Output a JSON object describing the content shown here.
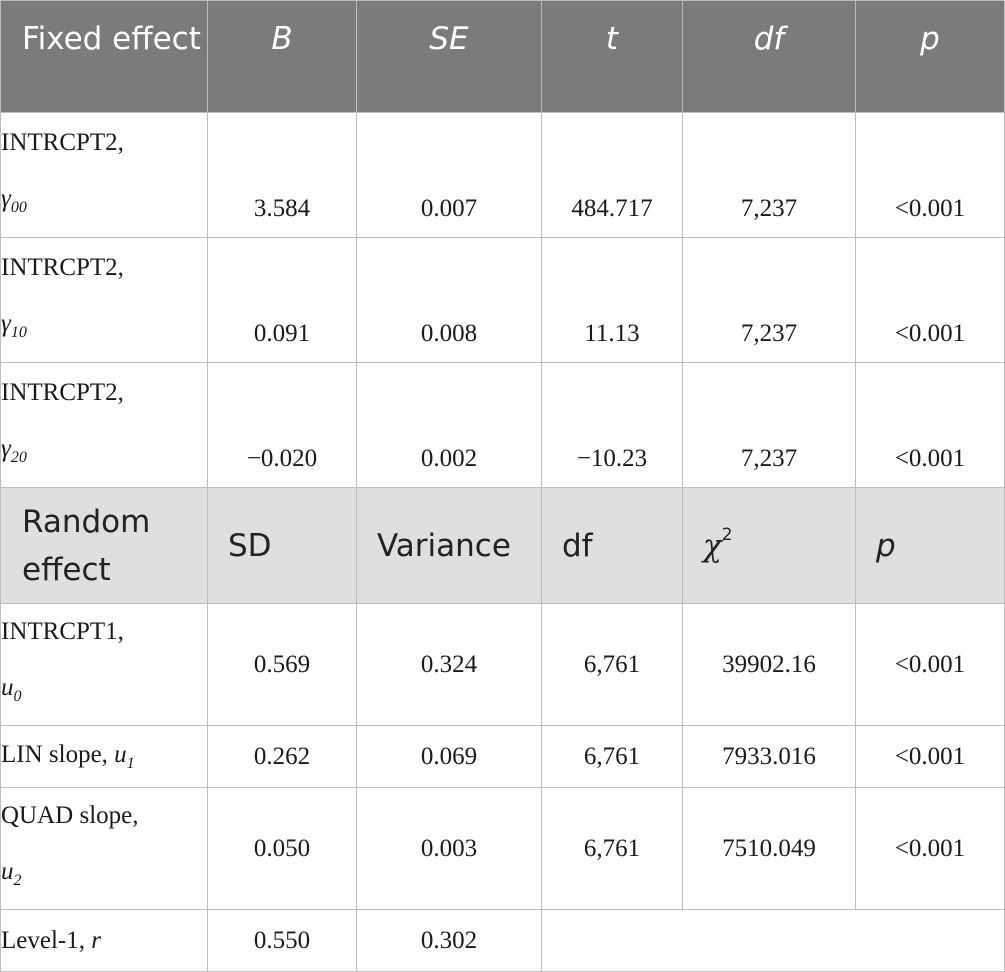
{
  "fixed_header": [
    "Fixed effect",
    "B",
    "SE",
    "t",
    "df",
    "p"
  ],
  "fixed_rows": [
    {
      "label": "INTRCPT2,",
      "symbol": "γ",
      "subscript": "00",
      "values": [
        "3.584",
        "0.007",
        "484.717",
        "7,237",
        "<0.001"
      ]
    },
    {
      "label": "INTRCPT2,",
      "symbol": "γ",
      "subscript": "10",
      "values": [
        "0.091",
        "0.008",
        "11.13",
        "7,237",
        "<0.001"
      ]
    },
    {
      "label": "INTRCPT2,",
      "symbol": "γ",
      "subscript": "20",
      "values": [
        "−0.020",
        "0.002",
        "−10.23",
        "7,237",
        "<0.001"
      ]
    }
  ],
  "random_header": [
    "Random effect",
    "SD",
    "Variance",
    "df",
    "χ",
    "p"
  ],
  "random_header_chi_superscript": "2",
  "random_rows": [
    {
      "label": "INTRCPT1,",
      "symbol": "u",
      "subscript": "0",
      "values": [
        "0.569",
        "0.324",
        "6,761",
        "39902.16",
        "<0.001"
      ]
    },
    {
      "label": "LIN slope,",
      "symbol": "u",
      "subscript": "1",
      "values": [
        "0.262",
        "0.069",
        "6,761",
        "7933.016",
        "<0.001"
      ]
    },
    {
      "label": "QUAD slope,",
      "symbol": "u",
      "subscript": "2",
      "values": [
        "0.050",
        "0.003",
        "6,761",
        "7510.049",
        "<0.001"
      ]
    },
    {
      "label": "Level-1,",
      "symbol": "r",
      "subscript": "",
      "values": [
        "0.550",
        "0.302"
      ]
    }
  ]
}
